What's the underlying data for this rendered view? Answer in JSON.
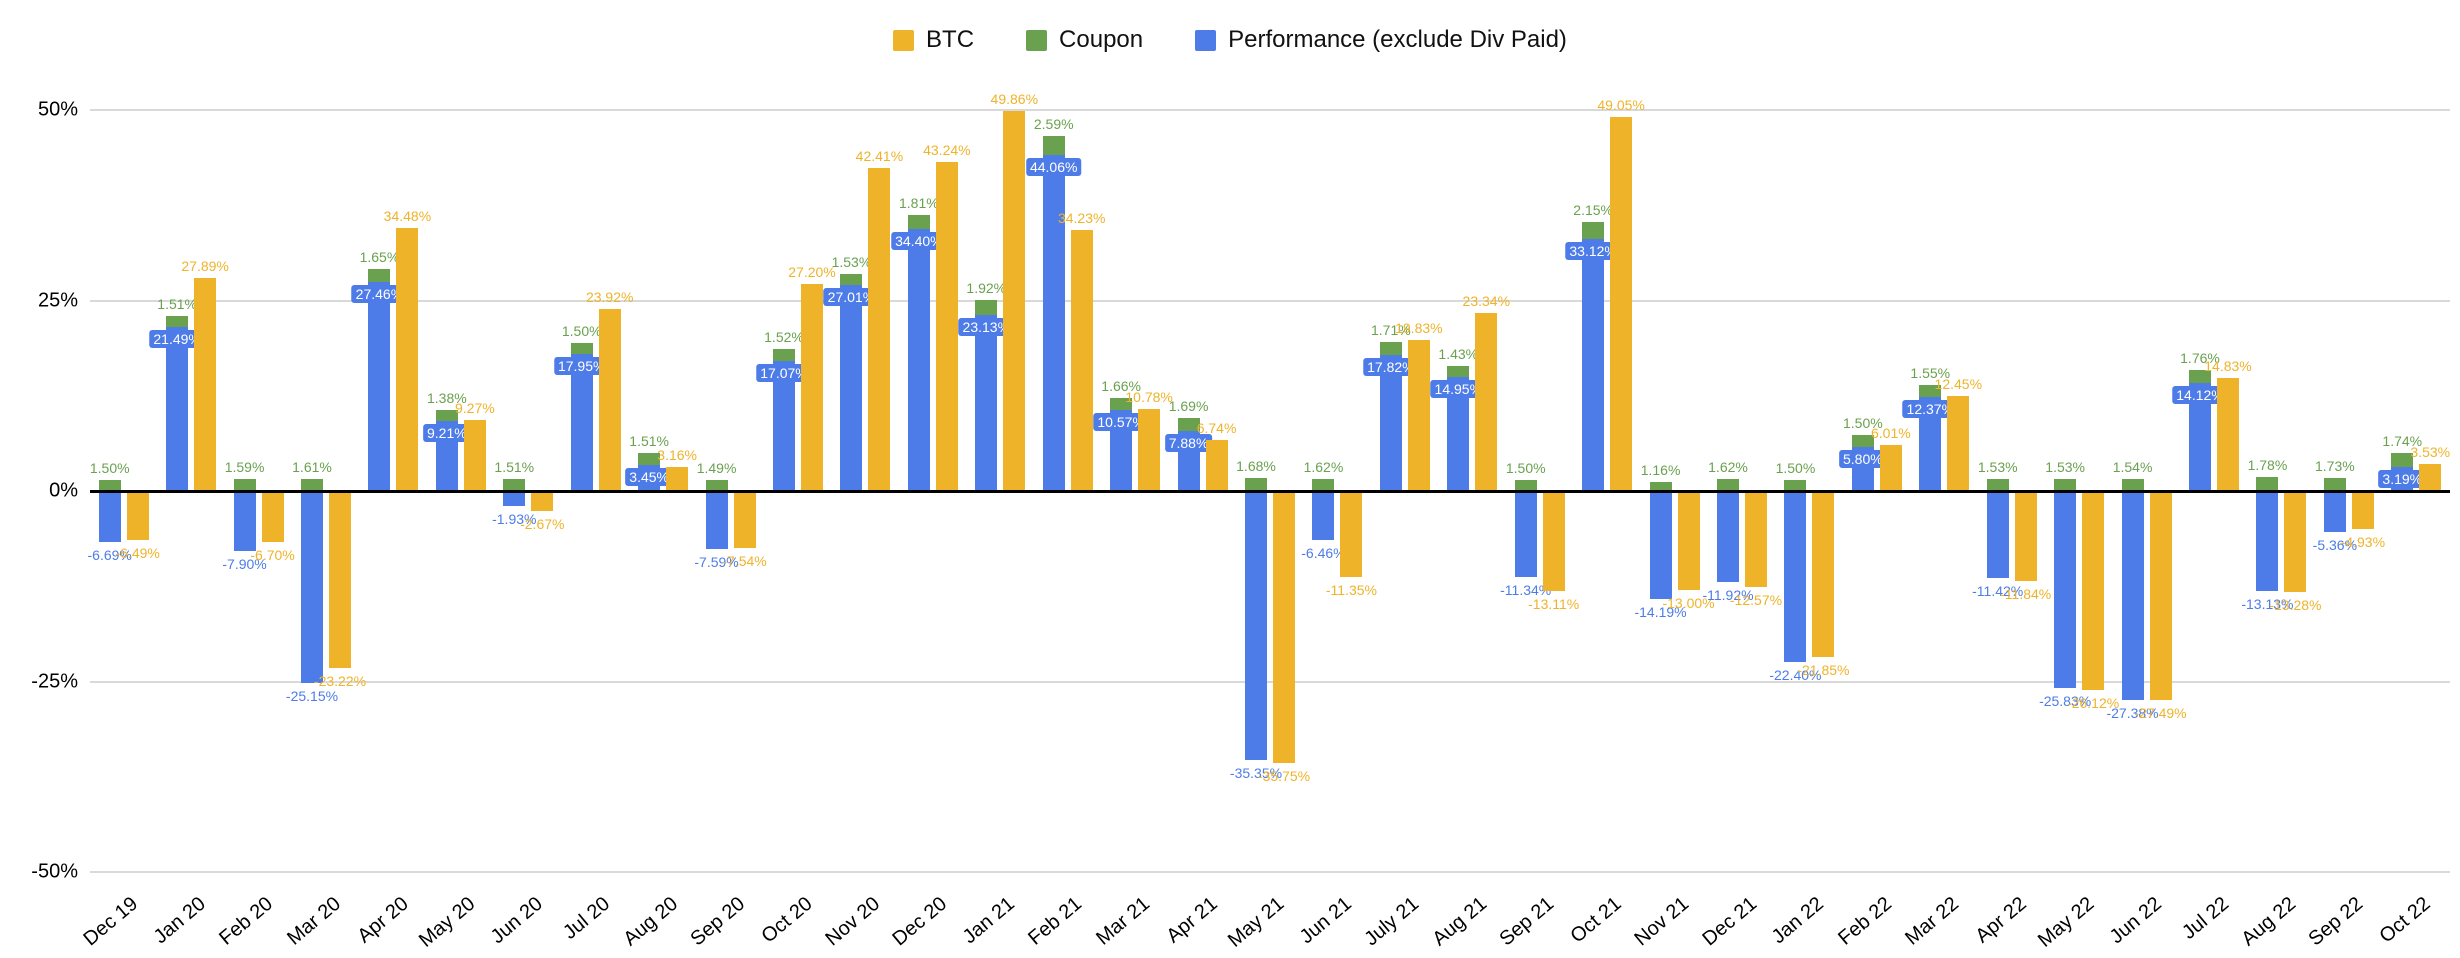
{
  "legend": [
    {
      "label": "BTC",
      "color": "#EFB32A"
    },
    {
      "label": "Coupon",
      "color": "#69A14F"
    },
    {
      "label": "Performance (exclude Div Paid)",
      "color": "#4D7CE8"
    }
  ],
  "y_axis": {
    "ticks": [
      "50%",
      "25%",
      "0%",
      "-25%",
      "-50%"
    ],
    "values": [
      50,
      25,
      0,
      -25,
      -50
    ]
  },
  "chart_data": {
    "type": "bar",
    "title": "",
    "xlabel": "",
    "ylabel": "",
    "ylim": [
      -50,
      50
    ],
    "grid": true,
    "legend_position": "top",
    "stacking": "Performance (blue) and Coupon (green) are stacked in one column; BTC (yellow) is a separate column per month",
    "categories": [
      "Dec 19",
      "Jan 20",
      "Feb 20",
      "Mar 20",
      "Apr 20",
      "May 20",
      "Jun 20",
      "Jul 20",
      "Aug 20",
      "Sep 20",
      "Oct 20",
      "Nov 20",
      "Dec 20",
      "Jan 21",
      "Feb 21",
      "Mar 21",
      "Apr 21",
      "May 21",
      "Jun 21",
      "July 21",
      "Aug 21",
      "Sep 21",
      "Oct 21",
      "Nov 21",
      "Dec 21",
      "Jan 22",
      "Feb 22",
      "Mar 22",
      "Apr 22",
      "May 22",
      "Jun 22",
      "Jul 22",
      "Aug 22",
      "Sep 22",
      "Oct 22"
    ],
    "series": [
      {
        "name": "BTC",
        "color": "#EFB32A",
        "values": [
          -6.49,
          27.89,
          -6.7,
          -23.22,
          34.48,
          9.27,
          -2.67,
          23.92,
          3.16,
          -7.54,
          27.2,
          42.41,
          43.24,
          49.86,
          34.23,
          10.78,
          6.74,
          -35.75,
          -11.35,
          19.83,
          23.34,
          -13.11,
          49.05,
          -13.0,
          -12.57,
          -21.85,
          6.01,
          12.45,
          -11.84,
          -26.12,
          -27.49,
          14.83,
          -13.28,
          -4.93,
          3.53
        ]
      },
      {
        "name": "Coupon",
        "color": "#69A14F",
        "values": [
          1.5,
          1.51,
          1.59,
          1.61,
          1.65,
          1.38,
          1.51,
          1.5,
          1.51,
          1.49,
          1.52,
          1.53,
          1.81,
          1.92,
          2.59,
          1.66,
          1.69,
          1.68,
          1.62,
          1.71,
          1.43,
          1.5,
          2.15,
          1.16,
          1.62,
          1.5,
          1.5,
          1.55,
          1.53,
          1.53,
          1.54,
          1.76,
          1.78,
          1.73,
          1.74
        ]
      },
      {
        "name": "Performance (exclude Div Paid)",
        "color": "#4D7CE8",
        "values": [
          -6.69,
          21.49,
          -7.9,
          -25.15,
          27.46,
          9.21,
          -1.93,
          17.95,
          3.45,
          -7.59,
          17.07,
          27.01,
          34.4,
          23.13,
          44.06,
          10.57,
          7.88,
          -35.35,
          -6.46,
          17.82,
          14.95,
          -11.34,
          33.12,
          -14.19,
          -11.92,
          -22.4,
          5.8,
          12.37,
          -11.42,
          -25.83,
          -27.38,
          14.12,
          -13.13,
          -5.36,
          3.19
        ]
      }
    ]
  }
}
